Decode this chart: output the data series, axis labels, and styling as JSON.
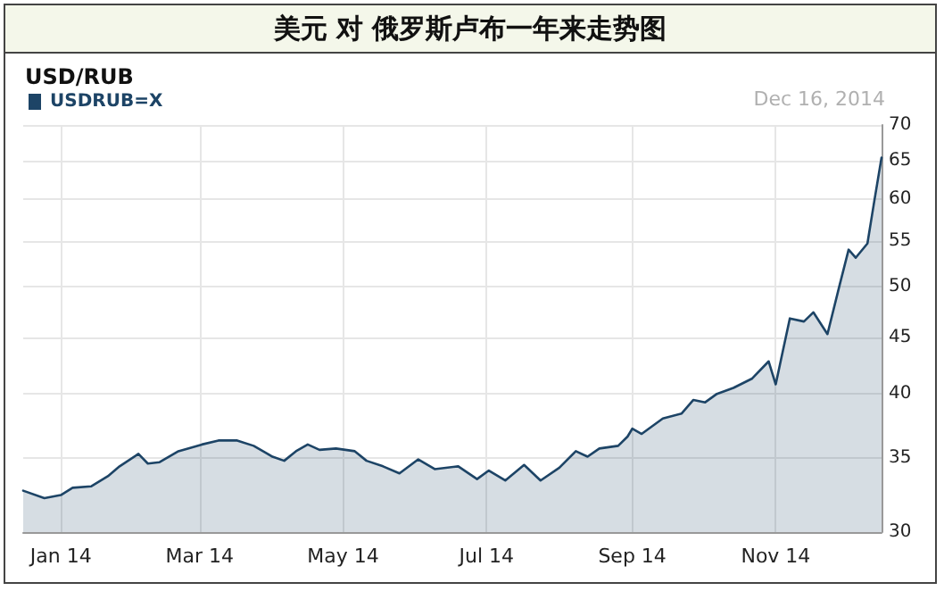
{
  "chart_data": {
    "type": "area",
    "title": "美元 对 俄罗斯卢布一年来走势图",
    "subtitle": "USD/RUB",
    "annotations": [
      "Dec 16, 2014"
    ],
    "x": [
      "2013-12-16",
      "2013-12-25",
      "2014-01-01",
      "2014-01-06",
      "2014-01-14",
      "2014-01-21",
      "2014-01-26",
      "2014-02-03",
      "2014-02-07",
      "2014-02-12",
      "2014-02-20",
      "2014-03-02",
      "2014-03-09",
      "2014-03-17",
      "2014-03-24",
      "2014-04-01",
      "2014-04-06",
      "2014-04-11",
      "2014-04-16",
      "2014-04-21",
      "2014-04-28",
      "2014-05-06",
      "2014-05-11",
      "2014-05-18",
      "2014-05-25",
      "2014-06-02",
      "2014-06-09",
      "2014-06-19",
      "2014-06-27",
      "2014-07-02",
      "2014-07-09",
      "2014-07-17",
      "2014-07-24",
      "2014-08-01",
      "2014-08-08",
      "2014-08-13",
      "2014-08-18",
      "2014-08-26",
      "2014-08-30",
      "2014-09-01",
      "2014-09-05",
      "2014-09-14",
      "2014-09-22",
      "2014-09-27",
      "2014-10-02",
      "2014-10-07",
      "2014-10-14",
      "2014-10-22",
      "2014-10-29",
      "2014-11-01",
      "2014-11-04",
      "2014-11-07",
      "2014-11-13",
      "2014-11-17",
      "2014-11-23",
      "2014-11-28",
      "2014-12-02",
      "2014-12-05",
      "2014-12-10",
      "2014-12-13",
      "2014-12-16"
    ],
    "series": [
      {
        "name": "USDRUB=X",
        "color": "#1d4466",
        "values": [
          32.7,
          32.2,
          32.4,
          32.9,
          33.0,
          33.7,
          34.4,
          35.3,
          34.6,
          34.7,
          35.5,
          36.0,
          36.3,
          36.3,
          35.9,
          35.1,
          34.8,
          35.5,
          36.0,
          35.6,
          35.7,
          35.5,
          34.8,
          34.4,
          33.9,
          34.9,
          34.2,
          34.4,
          33.5,
          34.1,
          33.4,
          34.5,
          33.4,
          34.3,
          35.5,
          35.1,
          35.7,
          35.9,
          36.6,
          37.2,
          36.8,
          38.0,
          38.4,
          39.5,
          39.3,
          40.0,
          40.5,
          41.3,
          42.8,
          40.8,
          43.7,
          46.8,
          46.5,
          47.4,
          45.3,
          50.0,
          54.0,
          53.1,
          54.7,
          59.9,
          65.4
        ]
      }
    ],
    "xlim": [
      "2013-12-16",
      "2014-12-16"
    ],
    "xticks": [
      {
        "value": "2014-01-01",
        "label": "Jan 14"
      },
      {
        "value": "2014-03-01",
        "label": "Mar 14"
      },
      {
        "value": "2014-05-01",
        "label": "May 14"
      },
      {
        "value": "2014-07-01",
        "label": "Jul 14"
      },
      {
        "value": "2014-09-01",
        "label": "Sep 14"
      },
      {
        "value": "2014-11-01",
        "label": "Nov 14"
      }
    ],
    "ylim": [
      30,
      70
    ],
    "yticks": [
      30,
      35,
      40,
      45,
      50,
      55,
      60,
      65,
      70
    ],
    "log": "y",
    "grid": true,
    "legend": "top left",
    "marker": "none",
    "line_style": "solid"
  }
}
